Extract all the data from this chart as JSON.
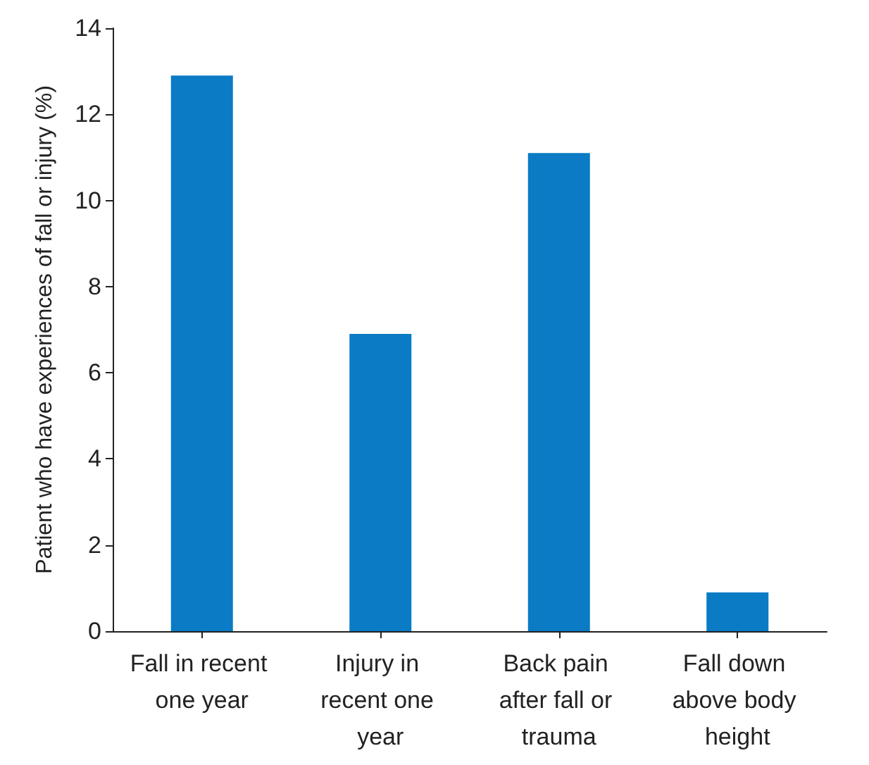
{
  "chart_data": {
    "type": "bar",
    "ylabel": "Patient who have experiences of fall or injury (%)",
    "categories": [
      "Fall in recent one year",
      "Injury in recent one year",
      "Back pain after fall or trauma",
      "Fall down above body height"
    ],
    "values": [
      12.9,
      6.9,
      11.1,
      0.9
    ],
    "color": "#0a7bc4",
    "ylim": [
      0,
      14
    ],
    "yticks": [
      0,
      2,
      4,
      6,
      8,
      10,
      12,
      14
    ],
    "grid": false
  }
}
